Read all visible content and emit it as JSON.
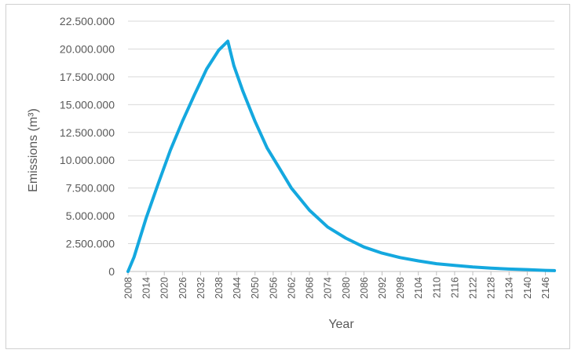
{
  "chart_data": {
    "type": "line",
    "title": "",
    "xlabel": "Year",
    "ylabel": "Emissions (m³)",
    "ylim": [
      0,
      22500000
    ],
    "xlim": [
      2008,
      2149
    ],
    "grid": true,
    "legend": "none",
    "y_ticks": [
      "0",
      "2.500.000",
      "5.000.000",
      "7.500.000",
      "10.000.000",
      "12.500.000",
      "15.000.000",
      "17.500.000",
      "20.000.000",
      "22.500.000"
    ],
    "x_ticks": [
      "2008",
      "2014",
      "2020",
      "2026",
      "2032",
      "2038",
      "2044",
      "2050",
      "2056",
      "2062",
      "2068",
      "2074",
      "2080",
      "2086",
      "2092",
      "2098",
      "2104",
      "2110",
      "2116",
      "2122",
      "2128",
      "2134",
      "2140",
      "2146"
    ],
    "series": [
      {
        "color": "#14a8df",
        "x": [
          2008,
          2010,
          2014,
          2018,
          2022,
          2026,
          2030,
          2034,
          2038,
          2041,
          2043,
          2046,
          2050,
          2054,
          2058,
          2062,
          2068,
          2074,
          2080,
          2086,
          2092,
          2098,
          2104,
          2110,
          2116,
          2122,
          2128,
          2134,
          2140,
          2146,
          2149
        ],
        "values": [
          0,
          1300000,
          4800000,
          7900000,
          10900000,
          13500000,
          15900000,
          18200000,
          19900000,
          20700000,
          18500000,
          16200000,
          13500000,
          11100000,
          9300000,
          7500000,
          5500000,
          4000000,
          3000000,
          2200000,
          1650000,
          1250000,
          950000,
          700000,
          550000,
          400000,
          300000,
          220000,
          170000,
          100000,
          80000
        ]
      }
    ]
  }
}
